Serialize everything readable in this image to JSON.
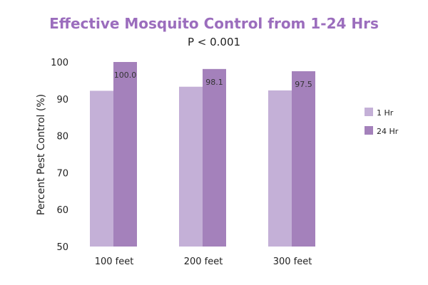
{
  "chart_data": {
    "type": "bar",
    "title": "Effective Mosquito Control from 1-24 Hrs",
    "subtitle": "P < 0.001",
    "xlabel": "",
    "ylabel": "Percent Pest Control (%)",
    "categories": [
      "100 feet",
      "200 feet",
      "300 feet"
    ],
    "series": [
      {
        "name": "1 Hr",
        "values": [
          92.2,
          93.3,
          92.3
        ],
        "color": "#c4b0d7",
        "data_labels": [
          "",
          "",
          ""
        ]
      },
      {
        "name": "24 Hr",
        "values": [
          100.0,
          98.1,
          97.5
        ],
        "color": "#a481bb",
        "data_labels": [
          "100.0",
          "98.1",
          "97.5"
        ]
      }
    ],
    "ylim": [
      50,
      100
    ],
    "yticks": [
      50,
      60,
      70,
      80,
      90,
      100
    ],
    "grid": false,
    "legend_position": "right",
    "title_color": "#9b6dbd"
  }
}
